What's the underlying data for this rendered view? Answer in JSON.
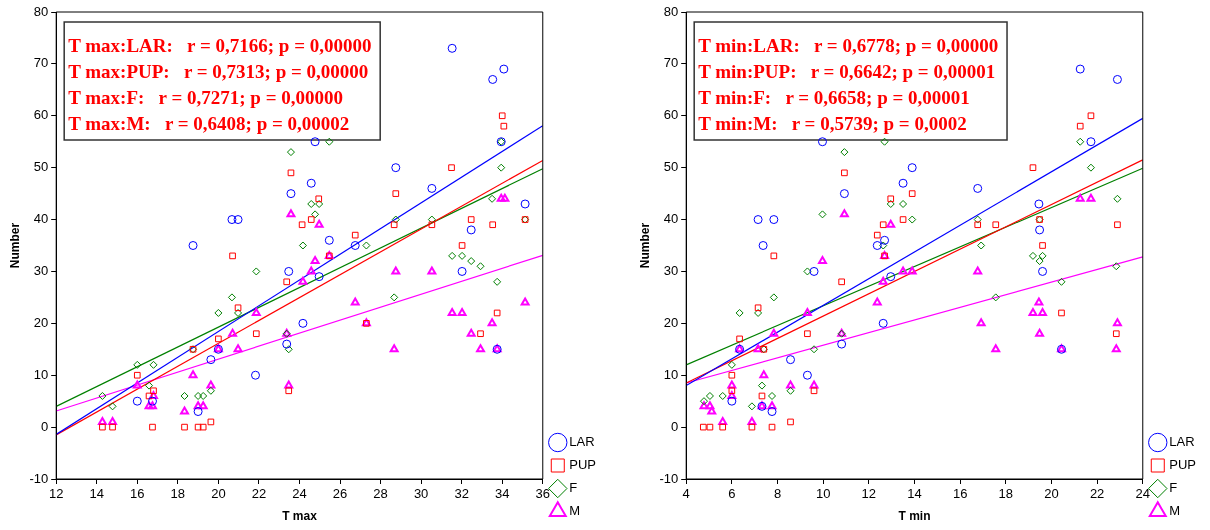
{
  "chart_data": [
    {
      "type": "scatter",
      "xlabel": "T max",
      "ylabel": "Number",
      "xlim": [
        12,
        36
      ],
      "xticks": [
        12,
        14,
        16,
        18,
        20,
        22,
        24,
        26,
        28,
        30,
        32,
        34,
        36
      ],
      "ylim": [
        -10,
        80
      ],
      "yticks": [
        -10,
        0,
        10,
        20,
        30,
        40,
        50,
        60,
        70,
        80
      ],
      "grid": false,
      "legend": "bottom right",
      "annotations": [
        "T max:LAR:   r = 0,7166; p = 0,00000",
        "T max:PUP:   r = 0,7313; p = 0,00000",
        "T max:F:   r = 0,7271; p = 0,00000",
        "T max:M:   r = 0,6408; p = 0,00002"
      ],
      "series": [
        {
          "name": "LAR",
          "color": "#0000ff",
          "marker": "circle",
          "x": [
            18.75,
            20.67,
            20.97,
            23.58,
            23.47,
            24.17,
            16.0,
            16.75,
            19.0,
            19.63,
            20.0,
            21.83,
            23.37,
            31.53,
            33.53,
            34.08,
            33.95,
            24.77,
            28.75,
            30.53,
            24.58,
            35.13,
            32.47,
            25.47,
            26.75,
            24.97,
            32.02,
            33.75
          ],
          "values": [
            35,
            40,
            40,
            45,
            30,
            20,
            5,
            5,
            3,
            13,
            15,
            10,
            16,
            73,
            67,
            69,
            55,
            55,
            50,
            46,
            47,
            43,
            38,
            36,
            35,
            29,
            30,
            15
          ]
        },
        {
          "name": "PUP",
          "color": "#ff0000",
          "marker": "square",
          "x": [
            23.58,
            24.13,
            20.7,
            23.37,
            20.97,
            21.87,
            20.0,
            18.75,
            16.0,
            16.8,
            16.58,
            23.47,
            14.28,
            14.78,
            16.75,
            18.33,
            19.0,
            19.25,
            19.63,
            34.0,
            34.08,
            31.5,
            28.75,
            24.95,
            24.58,
            28.67,
            30.53,
            33.53,
            32.47,
            35.13,
            26.75,
            32.02,
            25.47,
            33.75,
            27.3,
            32.93
          ],
          "values": [
            49,
            39,
            33,
            28,
            23,
            18,
            17,
            15,
            10,
            7,
            6,
            7,
            0,
            0,
            0,
            0,
            0,
            0,
            1,
            60,
            58,
            50,
            45,
            44,
            40,
            39,
            39,
            39,
            40,
            40,
            37,
            35,
            33,
            22,
            20,
            18
          ]
        },
        {
          "name": "F",
          "color": "#008000",
          "marker": "diamond",
          "x": [
            23.58,
            24.17,
            21.87,
            20.67,
            20.0,
            20.97,
            18.75,
            16.0,
            16.8,
            16.58,
            14.28,
            14.78,
            18.33,
            19.0,
            19.25,
            19.63,
            23.47,
            23.37,
            25.47,
            33.95,
            33.95,
            24.58,
            24.97,
            24.77,
            30.53,
            28.75,
            27.3,
            33.5,
            31.53,
            32.02,
            32.47,
            32.93,
            33.75,
            28.67,
            35.13
          ],
          "values": [
            53,
            35,
            30,
            25,
            22,
            22,
            15,
            12,
            12,
            8,
            6,
            4,
            6,
            6,
            6,
            7,
            15,
            18,
            55,
            55,
            50,
            43,
            43,
            41,
            40,
            40,
            35,
            44,
            33,
            33,
            32,
            31,
            28,
            25,
            40
          ]
        },
        {
          "name": "M",
          "color": "#ff00ff",
          "marker": "triangle",
          "x": [
            23.58,
            24.17,
            21.87,
            20.7,
            20.0,
            20.97,
            18.75,
            16.0,
            16.8,
            16.58,
            16.75,
            14.28,
            14.78,
            18.33,
            19.0,
            19.25,
            19.63,
            23.37,
            23.47,
            24.58,
            24.77,
            24.97,
            25.47,
            26.75,
            27.3,
            28.75,
            28.67,
            30.53,
            31.53,
            32.02,
            32.47,
            32.93,
            33.5,
            33.75,
            33.95,
            34.13,
            35.13
          ],
          "values": [
            41,
            28,
            22,
            18,
            15,
            15,
            10,
            8,
            6,
            4,
            4,
            1,
            1,
            3,
            4,
            4,
            8,
            18,
            8,
            30,
            32,
            39,
            33,
            24,
            20,
            30,
            15,
            30,
            22,
            22,
            18,
            15,
            20,
            15,
            44,
            44,
            24
          ]
        },
        {
          "type": "line",
          "color": "#0000ff",
          "x": [
            12,
            36
          ],
          "values": [
            -1.4,
            58.1
          ]
        },
        {
          "type": "line",
          "color": "#ff0000",
          "x": [
            12,
            36
          ],
          "values": [
            -1.5,
            51.4
          ]
        },
        {
          "type": "line",
          "color": "#008000",
          "x": [
            12,
            36
          ],
          "values": [
            4.0,
            49.8
          ]
        },
        {
          "type": "line",
          "color": "#ff00ff",
          "x": [
            12,
            36
          ],
          "values": [
            3.1,
            33.1
          ]
        }
      ]
    },
    {
      "type": "scatter",
      "xlabel": "T min",
      "ylabel": "Number",
      "xlim": [
        4,
        24
      ],
      "xticks": [
        4,
        6,
        8,
        10,
        12,
        14,
        16,
        18,
        20,
        22,
        24
      ],
      "ylim": [
        -10,
        80
      ],
      "yticks": [
        -10,
        0,
        10,
        20,
        30,
        40,
        50,
        60,
        70,
        80
      ],
      "grid": false,
      "legend": "bottom right",
      "annotations": [
        "T min:LAR:   r = 0,6778; p = 0,00000",
        "T min:PUP:   r = 0,6642; p = 0,00001",
        "T min:F:   r = 0,6658; p = 0,00001",
        "T min:M:   r = 0,5739; p = 0,0002"
      ],
      "series": [
        {
          "name": "LAR",
          "color": "#0000ff",
          "marker": "circle",
          "x": [
            9.97,
            13.9,
            13.5,
            10.93,
            7.15,
            7.84,
            7.37,
            9.6,
            12.37,
            12.69,
            12.96,
            12.63,
            10.81,
            6.34,
            8.57,
            9.31,
            6.0,
            7.32,
            7.76,
            21.26,
            22.89,
            21.73,
            16.77,
            19.45,
            19.48,
            19.61,
            20.44
          ],
          "values": [
            55,
            50,
            47,
            45,
            40,
            40,
            35,
            30,
            35,
            36,
            29,
            20,
            16,
            15,
            13,
            10,
            5,
            4,
            3,
            69,
            67,
            55,
            46,
            43,
            38,
            30,
            15
          ]
        },
        {
          "name": "PUP",
          "color": "#ff0000",
          "marker": "square",
          "x": [
            10.93,
            13.9,
            12.96,
            13.5,
            12.63,
            12.37,
            7.84,
            12.69,
            10.81,
            7.15,
            6.34,
            9.31,
            7.4,
            6.0,
            6.0,
            7.32,
            9.6,
            8.57,
            4.75,
            5.04,
            5.6,
            6.88,
            7.76,
            21.73,
            21.26,
            19.19,
            16.77,
            17.56,
            19.48,
            19.61,
            22.89,
            20.44,
            22.84
          ],
          "values": [
            49,
            45,
            44,
            40,
            39,
            37,
            33,
            33,
            28,
            23,
            17,
            18,
            15,
            10,
            7,
            6,
            7,
            1,
            0,
            0,
            0,
            0,
            0,
            60,
            58,
            50,
            39,
            39,
            40,
            35,
            39,
            22,
            18
          ]
        },
        {
          "name": "F",
          "color": "#008000",
          "marker": "diamond",
          "x": [
            10.93,
            12.69,
            12.96,
            13.5,
            13.9,
            9.97,
            12.63,
            9.31,
            7.84,
            6.34,
            7.15,
            10.81,
            6.0,
            7.4,
            9.6,
            7.32,
            8.57,
            7.76,
            4.78,
            5.04,
            5.6,
            6.88,
            21.26,
            21.73,
            22.89,
            16.77,
            19.48,
            16.92,
            19.19,
            19.61,
            19.48,
            22.84,
            20.44,
            17.56
          ],
          "values": [
            53,
            55,
            43,
            43,
            40,
            41,
            35,
            30,
            25,
            22,
            22,
            18,
            12,
            15,
            15,
            8,
            7,
            6,
            5,
            6,
            6,
            4,
            55,
            50,
            44,
            40,
            40,
            35,
            33,
            33,
            32,
            31,
            28,
            25
          ]
        },
        {
          "name": "M",
          "color": "#ff00ff",
          "marker": "triangle",
          "x": [
            10.93,
            12.96,
            9.97,
            12.69,
            13.5,
            13.9,
            12.63,
            12.37,
            9.31,
            7.84,
            10.81,
            6.34,
            7.15,
            7.4,
            6.0,
            6.0,
            8.57,
            9.6,
            7.32,
            7.76,
            4.78,
            5.04,
            5.12,
            5.6,
            6.88,
            21.26,
            21.73,
            16.77,
            19.45,
            19.19,
            19.61,
            16.92,
            22.89,
            19.48,
            17.56,
            20.44,
            22.84
          ],
          "values": [
            41,
            39,
            32,
            33,
            30,
            30,
            28,
            24,
            22,
            18,
            18,
            15,
            15,
            10,
            8,
            6,
            8,
            8,
            4,
            4,
            4,
            4,
            3,
            1,
            1,
            44,
            44,
            30,
            24,
            22,
            22,
            20,
            20,
            18,
            15,
            15,
            15
          ]
        },
        {
          "type": "line",
          "color": "#0000ff",
          "x": [
            4,
            24
          ],
          "values": [
            8.0,
            59.5
          ]
        },
        {
          "type": "line",
          "color": "#ff0000",
          "x": [
            4,
            24
          ],
          "values": [
            8.5,
            51.5
          ]
        },
        {
          "type": "line",
          "color": "#008000",
          "x": [
            4,
            24
          ],
          "values": [
            12.0,
            49.9
          ]
        },
        {
          "type": "line",
          "color": "#ff00ff",
          "x": [
            4,
            24
          ],
          "values": [
            8.5,
            32.8
          ]
        }
      ]
    }
  ]
}
